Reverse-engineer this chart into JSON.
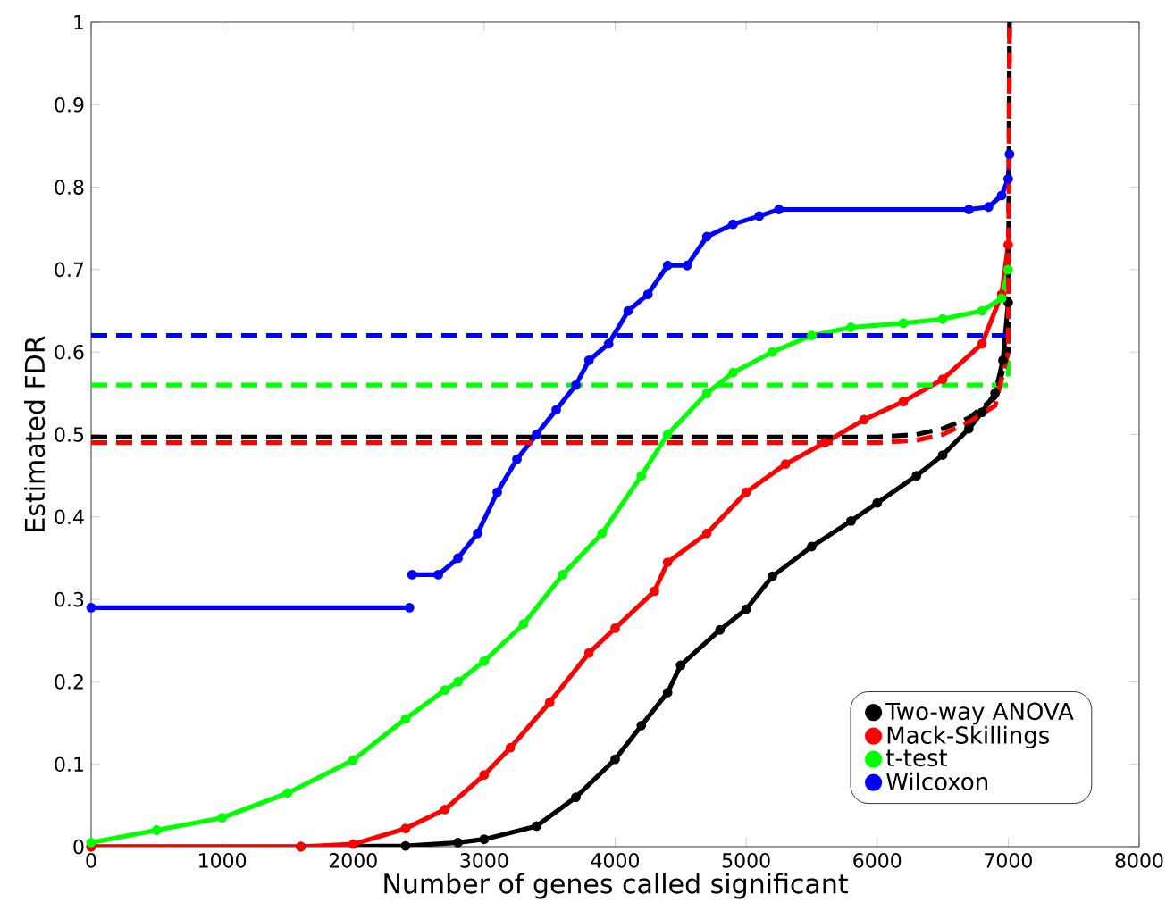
{
  "chart_data": {
    "type": "line",
    "xlabel": "Number of genes called significant",
    "ylabel": "Estimated FDR",
    "xlim": [
      0,
      8000
    ],
    "ylim": [
      0,
      1
    ],
    "xticks": [
      0,
      1000,
      2000,
      3000,
      4000,
      5000,
      6000,
      7000,
      8000
    ],
    "yticks": [
      0,
      0.1,
      0.2,
      0.3,
      0.4,
      0.5,
      0.6,
      0.7,
      0.8,
      0.9,
      1
    ],
    "legend": "bottom right",
    "series": [
      {
        "name": "Two-way ANOVA",
        "color": "#000000",
        "marker": "circle",
        "line_style": "solid",
        "x": [
          0,
          1600,
          2400,
          2800,
          3000,
          3400,
          3700,
          4000,
          4200,
          4400,
          4500,
          4800,
          5000,
          5200,
          5500,
          5800,
          6000,
          6300,
          6500,
          6700,
          6800,
          6900,
          6960,
          7000
        ],
        "values": [
          0,
          0,
          0.001,
          0.005,
          0.009,
          0.025,
          0.06,
          0.106,
          0.147,
          0.187,
          0.22,
          0.263,
          0.288,
          0.328,
          0.364,
          0.395,
          0.417,
          0.45,
          0.475,
          0.507,
          0.527,
          0.55,
          0.59,
          0.66
        ]
      },
      {
        "name": "Mack-Skillings",
        "color": "#ff0000",
        "marker": "circle",
        "line_style": "solid",
        "x": [
          0,
          1600,
          2000,
          2400,
          2700,
          3000,
          3200,
          3500,
          3800,
          4000,
          4300,
          4400,
          4700,
          5000,
          5300,
          5600,
          5900,
          6200,
          6500,
          6800,
          6950,
          7000
        ],
        "values": [
          0,
          0,
          0.003,
          0.022,
          0.045,
          0.087,
          0.12,
          0.175,
          0.235,
          0.265,
          0.31,
          0.345,
          0.38,
          0.43,
          0.464,
          0.49,
          0.518,
          0.54,
          0.567,
          0.61,
          0.67,
          0.73
        ]
      },
      {
        "name": "t-test",
        "color": "#00ff00",
        "marker": "circle",
        "line_style": "solid",
        "x": [
          0,
          500,
          1000,
          1500,
          2000,
          2400,
          2700,
          2800,
          3000,
          3300,
          3600,
          3900,
          4200,
          4400,
          4700,
          4900,
          5200,
          5500,
          5800,
          6200,
          6500,
          6800,
          6950,
          7000
        ],
        "values": [
          0.005,
          0.02,
          0.035,
          0.065,
          0.105,
          0.155,
          0.19,
          0.2,
          0.225,
          0.27,
          0.33,
          0.38,
          0.45,
          0.5,
          0.55,
          0.575,
          0.6,
          0.62,
          0.63,
          0.635,
          0.64,
          0.65,
          0.665,
          0.7
        ]
      },
      {
        "name": "Wilcoxon",
        "color": "#0000ff",
        "marker": "circle",
        "line_style": "solid",
        "x": [
          0,
          2430,
          2440,
          2450,
          2650,
          2800,
          2950,
          3100,
          3250,
          3400,
          3550,
          3700,
          3800,
          3950,
          4100,
          4250,
          4400,
          4550,
          4700,
          4900,
          5100,
          5250,
          6700,
          6850,
          6950,
          7000,
          7010
        ],
        "values": [
          0.29,
          0.29,
          null,
          0.33,
          0.33,
          0.35,
          0.38,
          0.43,
          0.47,
          0.5,
          0.53,
          0.56,
          0.59,
          0.61,
          0.65,
          0.67,
          0.705,
          0.705,
          0.74,
          0.755,
          0.765,
          0.773,
          0.773,
          0.776,
          0.79,
          0.81,
          0.84
        ]
      },
      {
        "color": "#0000ff",
        "marker": "none",
        "line_style": "dashed",
        "x": [
          0,
          7000
        ],
        "values": [
          0.62,
          0.62
        ]
      },
      {
        "color": "#00ff00",
        "marker": "none",
        "line_style": "dashed",
        "x": [
          0,
          7000,
          7000
        ],
        "values": [
          0.56,
          0.56,
          0.59
        ]
      },
      {
        "color": "#000000",
        "marker": "none",
        "line_style": "dashed",
        "x": [
          0,
          6000,
          6300,
          6500,
          6700,
          6900,
          7000,
          7010
        ],
        "values": [
          0.497,
          0.497,
          0.5,
          0.507,
          0.52,
          0.545,
          0.6,
          1
        ]
      },
      {
        "color": "#ff0000",
        "marker": "none",
        "line_style": "dashed",
        "x": [
          0,
          6000,
          6300,
          6500,
          6700,
          6900,
          7000,
          7010
        ],
        "values": [
          0.49,
          0.49,
          0.493,
          0.5,
          0.515,
          0.535,
          0.6,
          1
        ]
      }
    ]
  }
}
